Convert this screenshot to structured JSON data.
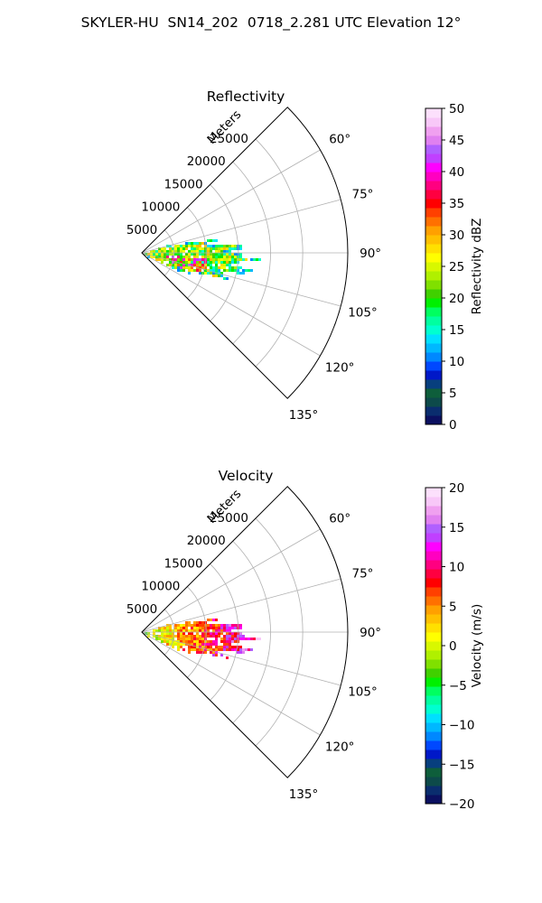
{
  "figure": {
    "title": "SKYLER-HU  SN14_202  0718_2.281 UTC Elevation 12°"
  },
  "chart_data": [
    {
      "type": "heatmap",
      "subtype": "polar-sector (PPI wedge)",
      "title": "Reflectivity",
      "radial_label": "Meters",
      "radial_ticks": [
        5000,
        10000,
        15000,
        20000,
        25000
      ],
      "radial_tick_labels": [
        "5000",
        "10000",
        "15000",
        "20000",
        "25000"
      ],
      "rmax": 32000,
      "angle_range_deg": [
        45,
        135
      ],
      "angle_ticks_deg": [
        60,
        75,
        90,
        105,
        120,
        135
      ],
      "angle_tick_labels": [
        "60°",
        "75°",
        "90°",
        "105°",
        "120°",
        "135°"
      ],
      "grid": true,
      "colorbar": {
        "label": "Reflectivity dBZ",
        "range": [
          0,
          50
        ],
        "ticks": [
          0,
          5,
          10,
          15,
          20,
          25,
          30,
          35,
          40,
          45,
          50
        ],
        "tick_labels": [
          "0",
          "5",
          "10",
          "15",
          "20",
          "25",
          "30",
          "35",
          "40",
          "45",
          "50"
        ],
        "colors": [
          "#0b1060",
          "#0a2d6e",
          "#0d4a4a",
          "#0e5e3b",
          "#073f7e",
          "#0018c8",
          "#0048ff",
          "#0088ff",
          "#00b8ff",
          "#00e0ff",
          "#00ffd0",
          "#00ffa0",
          "#00ff60",
          "#00f000",
          "#40d000",
          "#80e000",
          "#b0f000",
          "#d8f800",
          "#ffff00",
          "#ffe000",
          "#ffc000",
          "#ffa000",
          "#ff7000",
          "#ff4000",
          "#ff0000",
          "#ff0040",
          "#ff0080",
          "#ff00c0",
          "#ff00ff",
          "#c040ff",
          "#b060ff",
          "#e080f0",
          "#f0a0f0",
          "#f8c8f8",
          "#fce0fc"
        ]
      },
      "region": {
        "center_angle_deg": 94,
        "angle_spread_deg": 25,
        "range_min_m": 0,
        "range_max_m": 16000,
        "dominant_value_range": [
          15,
          30
        ],
        "core_value_range": [
          30,
          45
        ]
      }
    },
    {
      "type": "heatmap",
      "subtype": "polar-sector (PPI wedge)",
      "title": "Velocity",
      "radial_label": "Meters",
      "radial_ticks": [
        5000,
        10000,
        15000,
        20000,
        25000
      ],
      "radial_tick_labels": [
        "5000",
        "10000",
        "15000",
        "20000",
        "25000"
      ],
      "rmax": 32000,
      "angle_range_deg": [
        45,
        135
      ],
      "angle_ticks_deg": [
        60,
        75,
        90,
        105,
        120,
        135
      ],
      "angle_tick_labels": [
        "60°",
        "75°",
        "90°",
        "105°",
        "120°",
        "135°"
      ],
      "grid": true,
      "colorbar": {
        "label": "Velocity (m/s)",
        "range": [
          -20,
          20
        ],
        "ticks": [
          -20,
          -15,
          -10,
          -5,
          0,
          5,
          10,
          15,
          20
        ],
        "tick_labels": [
          "−20",
          "−15",
          "−10",
          "−5",
          "0",
          "5",
          "10",
          "15",
          "20"
        ],
        "colors": [
          "#0b1060",
          "#0a2d6e",
          "#0d4a4a",
          "#0e5e3b",
          "#073f7e",
          "#0018c8",
          "#0048ff",
          "#0088ff",
          "#00b8ff",
          "#00e0ff",
          "#00ffd0",
          "#00ffa0",
          "#00ff60",
          "#00f000",
          "#40d000",
          "#80e000",
          "#b0f000",
          "#d8f800",
          "#ffff00",
          "#ffe000",
          "#ffc000",
          "#ffa000",
          "#ff7000",
          "#ff4000",
          "#ff0000",
          "#ff0040",
          "#ff0080",
          "#ff00c0",
          "#ff00ff",
          "#c040ff",
          "#b060ff",
          "#e080f0",
          "#f0a0f0",
          "#f8c8f8",
          "#fce0fc"
        ]
      },
      "region": {
        "center_angle_deg": 94,
        "angle_spread_deg": 25,
        "range_min_m": 0,
        "range_max_m": 16000,
        "near_value_range": [
          -5,
          2
        ],
        "far_value_range": [
          8,
          18
        ]
      }
    }
  ]
}
